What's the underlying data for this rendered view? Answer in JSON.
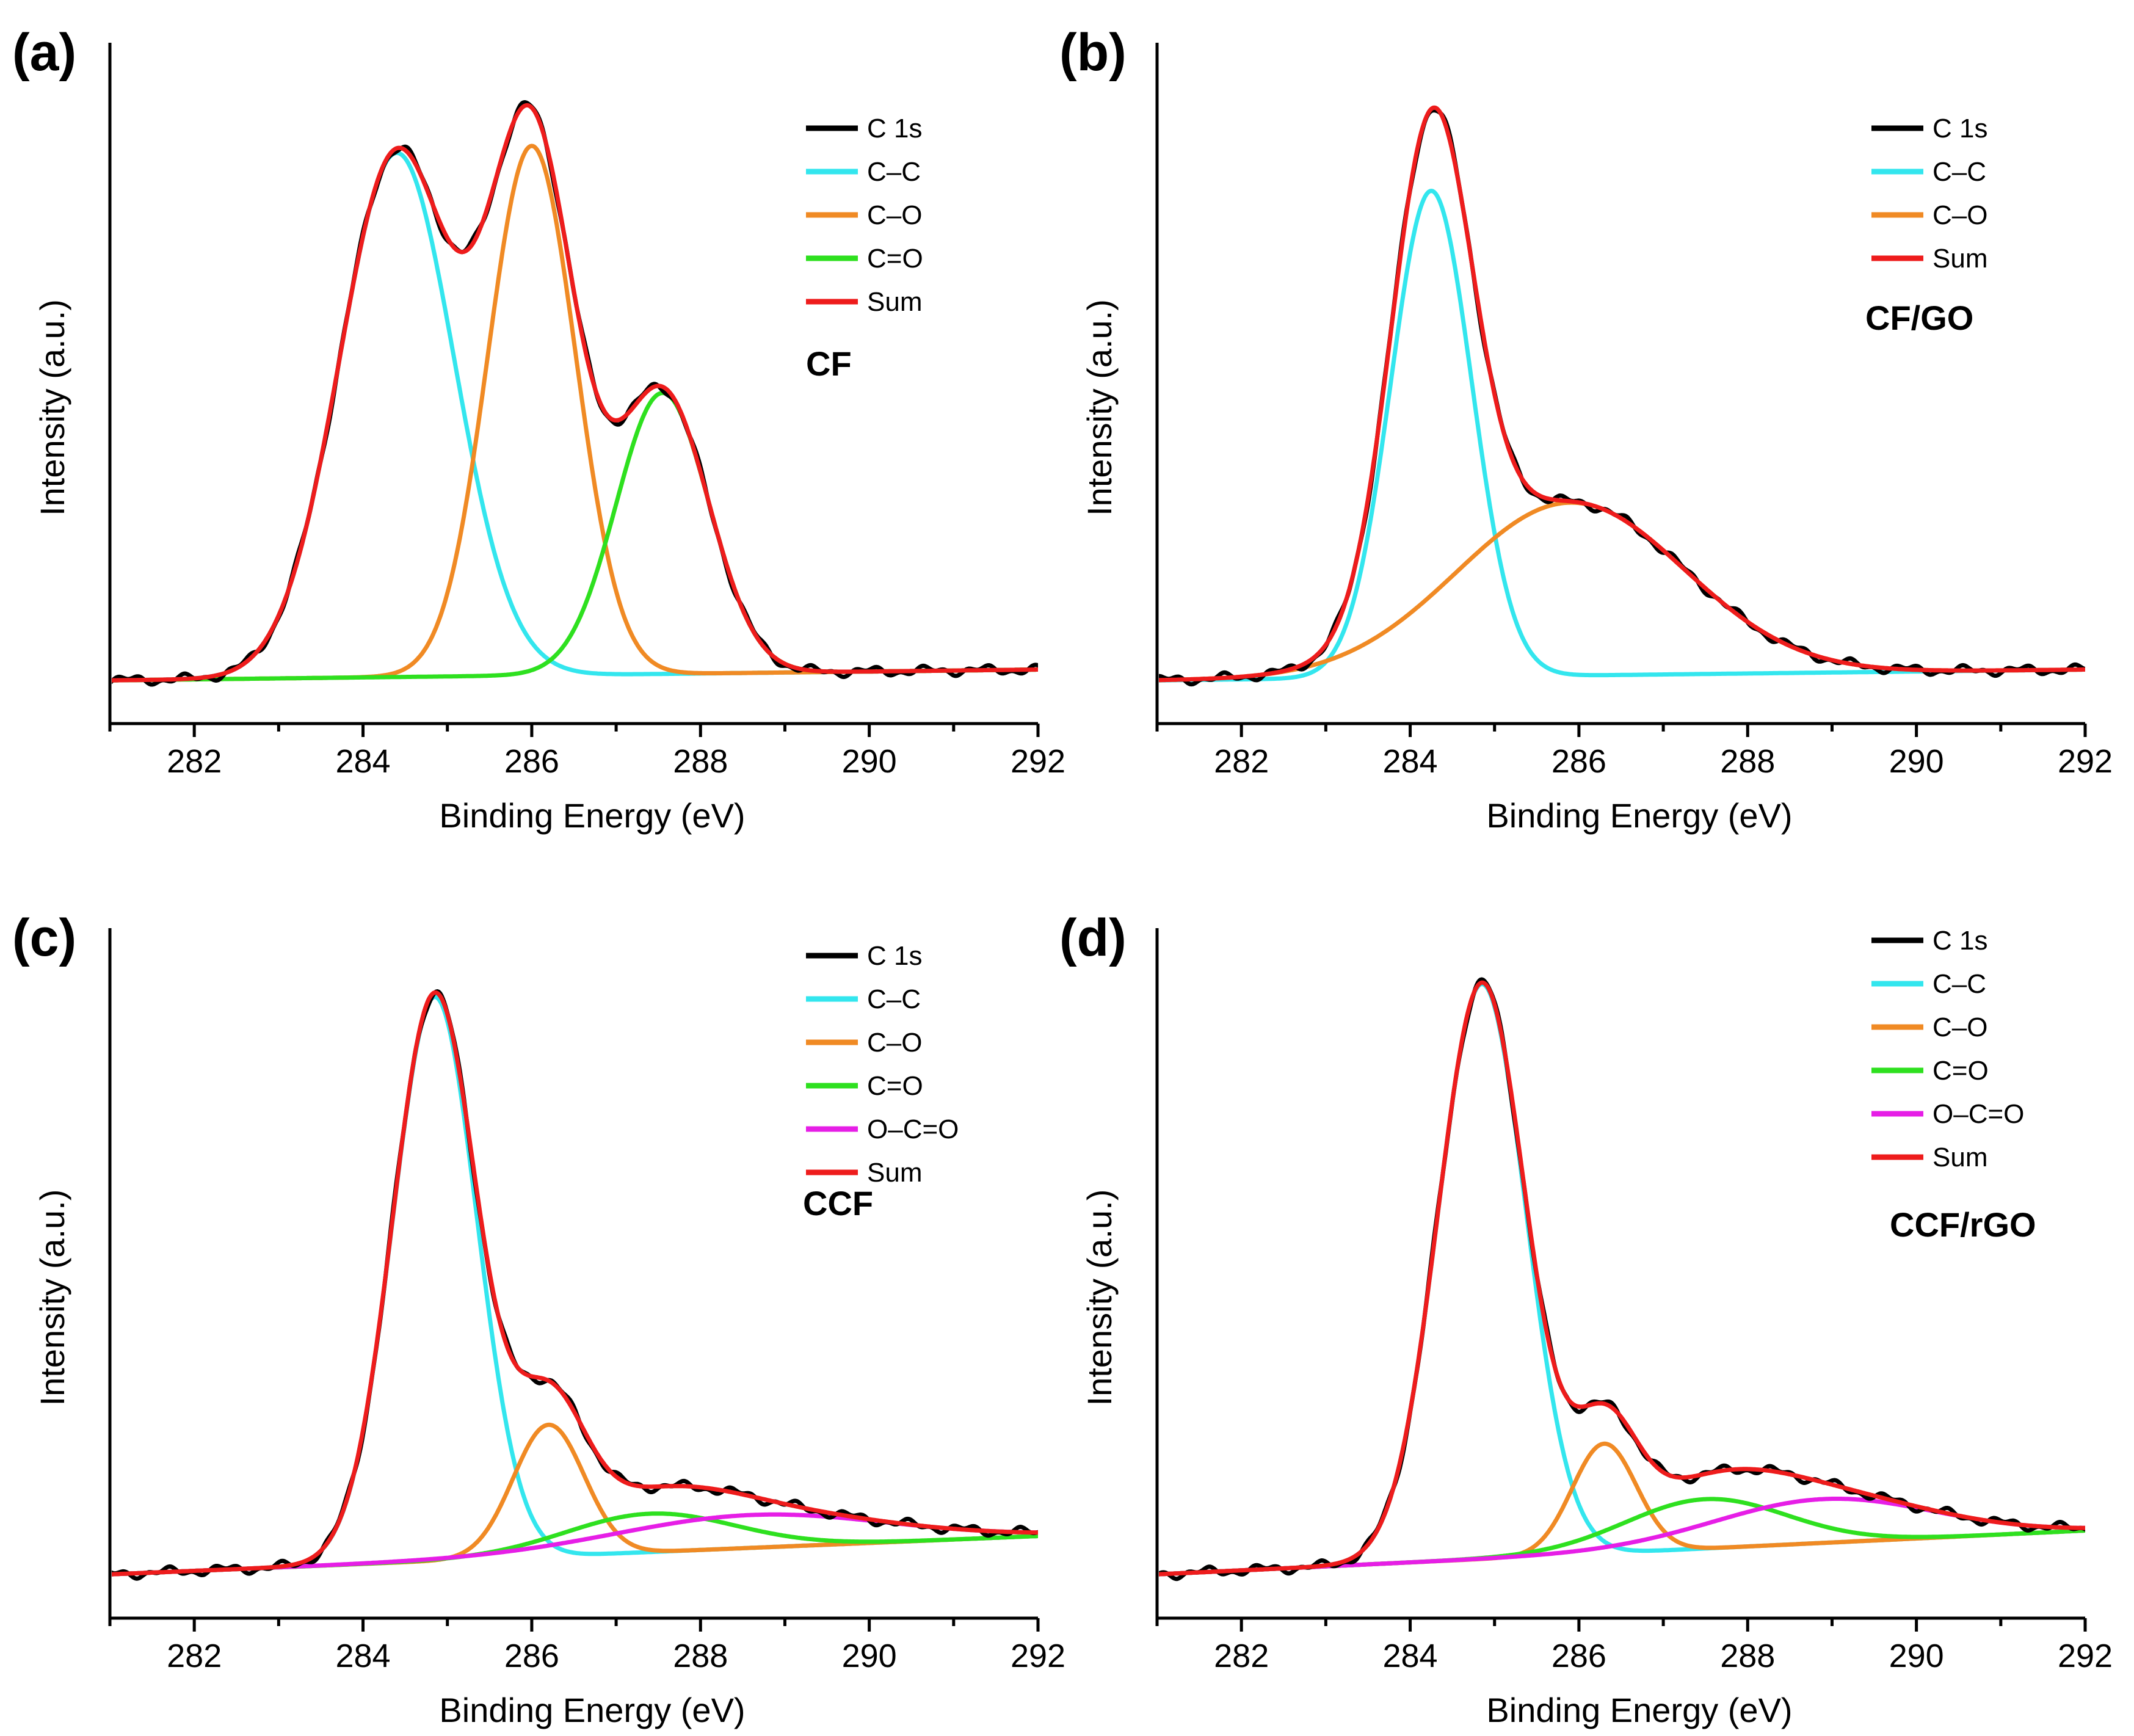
{
  "colors": {
    "C 1s": "#000000",
    "C–C": "#33e6ee",
    "C–O": "#f08a24",
    "C=O": "#2ee01f",
    "O–C=O": "#e61ee6",
    "Sum": "#ee1c1c"
  },
  "chart_data": [
    {
      "type": "line",
      "panel_label": "(a)",
      "sample": "CF",
      "xlabel": "Binding Energy (eV)",
      "ylabel": "Intensity (a.u.)",
      "xlim": [
        281,
        292
      ],
      "ylim": [
        -0.08,
        1.18
      ],
      "xticks": [
        "282",
        "284",
        "286",
        "288",
        "290",
        "292"
      ],
      "legend": [
        "C 1s",
        "C–C",
        "C–O",
        "C=O",
        "Sum"
      ],
      "baseline": {
        "start": 0.0,
        "end": 0.02
      },
      "series": [
        {
          "name": "C–C",
          "center": 284.4,
          "height": 0.97,
          "width": 0.68
        },
        {
          "name": "C–O",
          "center": 286.0,
          "height": 0.98,
          "width": 0.52
        },
        {
          "name": "C=O",
          "center": 287.55,
          "height": 0.52,
          "width": 0.55
        }
      ],
      "sum_label": "Sum",
      "raw_label": "C 1s"
    },
    {
      "type": "line",
      "panel_label": "(b)",
      "sample": "CF/GO",
      "xlabel": "Binding Energy (eV)",
      "ylabel": "Intensity (a.u.)",
      "xlim": [
        281,
        292
      ],
      "ylim": [
        -0.08,
        1.18
      ],
      "xticks": [
        "282",
        "284",
        "286",
        "288",
        "290",
        "292"
      ],
      "legend": [
        "C 1s",
        "C–C",
        "C–O",
        "Sum"
      ],
      "baseline": {
        "start": 0.0,
        "end": 0.02
      },
      "series": [
        {
          "name": "C–C",
          "center": 284.25,
          "height": 0.9,
          "width": 0.48
        },
        {
          "name": "C–O",
          "center": 285.9,
          "height": 0.32,
          "width": 1.35
        }
      ],
      "sum_label": "Sum",
      "raw_label": "C 1s"
    },
    {
      "type": "line",
      "panel_label": "(c)",
      "sample": "CCF",
      "xlabel": "Binding Energy (eV)",
      "ylabel": "Intensity (a.u.)",
      "xlim": [
        281,
        292
      ],
      "ylim": [
        -0.08,
        1.18
      ],
      "xticks": [
        "282",
        "284",
        "286",
        "288",
        "290",
        "292"
      ],
      "legend": [
        "C 1s",
        "C–C",
        "C–O",
        "C=O",
        "O–C=O",
        "Sum"
      ],
      "baseline": {
        "start": 0.0,
        "end": 0.07
      },
      "series": [
        {
          "name": "C–C",
          "center": 284.85,
          "height": 1.03,
          "width": 0.5
        },
        {
          "name": "C–O",
          "center": 286.2,
          "height": 0.24,
          "width": 0.42
        },
        {
          "name": "C=O",
          "center": 287.4,
          "height": 0.07,
          "width": 1.0
        },
        {
          "name": "O–C=O",
          "center": 288.6,
          "height": 0.06,
          "width": 1.6
        }
      ],
      "sum_label": "Sum",
      "raw_label": "C 1s"
    },
    {
      "type": "line",
      "panel_label": "(d)",
      "sample": "CCF/rGO",
      "xlabel": "Binding Energy (eV)",
      "ylabel": "Intensity (a.u.)",
      "xlim": [
        281,
        292
      ],
      "ylim": [
        -0.08,
        1.18
      ],
      "xticks": [
        "282",
        "284",
        "286",
        "288",
        "290",
        "292"
      ],
      "legend": [
        "C 1s",
        "C–C",
        "C–O",
        "C=O",
        "O–C=O",
        "Sum"
      ],
      "baseline": {
        "start": 0.0,
        "end": 0.08
      },
      "series": [
        {
          "name": "C–C",
          "center": 284.85,
          "height": 1.05,
          "width": 0.52
        },
        {
          "name": "C–O",
          "center": 286.3,
          "height": 0.2,
          "width": 0.38
        },
        {
          "name": "C=O",
          "center": 287.5,
          "height": 0.09,
          "width": 0.95
        },
        {
          "name": "O–C=O",
          "center": 288.9,
          "height": 0.08,
          "width": 1.3
        }
      ],
      "sum_label": "Sum",
      "raw_label": "C 1s"
    }
  ]
}
